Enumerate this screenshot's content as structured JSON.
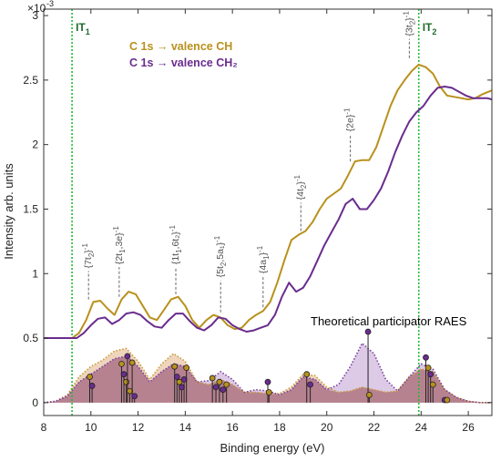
{
  "chart_data": {
    "type": "line",
    "xlabel": "Binding energy (eV)",
    "ylabel": "Intensity arb. units",
    "exponent_label": "×10",
    "exponent_power": "-3",
    "xlim": [
      8,
      27
    ],
    "ylim": [
      -0.1,
      3.05
    ],
    "xticks": [
      "8",
      "10",
      "12",
      "14",
      "16",
      "18",
      "20",
      "22",
      "24",
      "26"
    ],
    "yticks": [
      "0",
      "0.5",
      "1",
      "1.5",
      "2",
      "2.5",
      "3"
    ],
    "grid": false,
    "legend": {
      "placement": "top-left",
      "entries": [
        {
          "label": "C 1s → valence CH",
          "color": "#b8911d"
        },
        {
          "label": "C 1s → valence CH₂",
          "color": "#6a2c8e"
        }
      ]
    },
    "series": [
      {
        "name": "C 1s → valence CH",
        "color": "#b8911d",
        "x": [
          8,
          9.2,
          9.5,
          9.8,
          10.1,
          10.4,
          10.7,
          11.0,
          11.3,
          11.6,
          11.9,
          12.2,
          12.5,
          12.8,
          13.1,
          13.4,
          13.7,
          14.0,
          14.3,
          14.6,
          14.9,
          15.2,
          15.5,
          15.8,
          16.1,
          16.4,
          16.7,
          17.0,
          17.3,
          17.6,
          17.9,
          18.2,
          18.5,
          18.8,
          19.1,
          19.4,
          19.7,
          20.0,
          20.3,
          20.6,
          20.9,
          21.2,
          21.5,
          21.8,
          22.1,
          22.4,
          22.7,
          23.0,
          23.3,
          23.6,
          23.9,
          24.2,
          24.5,
          24.8,
          25.1,
          25.4,
          25.7,
          26.0,
          26.3,
          26.6,
          27
        ],
        "y": [
          0.5,
          0.5,
          0.54,
          0.64,
          0.78,
          0.79,
          0.73,
          0.68,
          0.8,
          0.86,
          0.84,
          0.75,
          0.66,
          0.64,
          0.72,
          0.8,
          0.82,
          0.75,
          0.64,
          0.58,
          0.64,
          0.68,
          0.66,
          0.6,
          0.57,
          0.58,
          0.64,
          0.68,
          0.71,
          0.78,
          0.93,
          1.1,
          1.26,
          1.3,
          1.33,
          1.4,
          1.5,
          1.58,
          1.62,
          1.66,
          1.76,
          1.87,
          1.88,
          1.88,
          1.98,
          2.14,
          2.3,
          2.42,
          2.5,
          2.57,
          2.62,
          2.6,
          2.55,
          2.45,
          2.38,
          2.37,
          2.36,
          2.35,
          2.36,
          2.39,
          2.42
        ]
      },
      {
        "name": "C 1s → valence CH₂",
        "color": "#6a2c8e",
        "x": [
          8,
          9.4,
          9.7,
          10.0,
          10.3,
          10.6,
          10.9,
          11.2,
          11.5,
          11.8,
          12.1,
          12.4,
          12.7,
          13.0,
          13.3,
          13.6,
          13.9,
          14.2,
          14.5,
          14.8,
          15.1,
          15.4,
          15.7,
          16.0,
          16.3,
          16.6,
          16.9,
          17.2,
          17.5,
          17.8,
          18.1,
          18.4,
          18.7,
          19.0,
          19.3,
          19.6,
          19.9,
          20.2,
          20.5,
          20.8,
          21.1,
          21.4,
          21.7,
          22.0,
          22.3,
          22.6,
          22.9,
          23.2,
          23.5,
          23.8,
          24.1,
          24.4,
          24.7,
          25.0,
          25.3,
          25.6,
          25.9,
          26.2,
          26.5,
          26.8,
          27
        ],
        "y": [
          0.5,
          0.5,
          0.54,
          0.6,
          0.65,
          0.66,
          0.61,
          0.64,
          0.69,
          0.7,
          0.68,
          0.63,
          0.59,
          0.58,
          0.64,
          0.69,
          0.69,
          0.63,
          0.58,
          0.56,
          0.6,
          0.66,
          0.65,
          0.6,
          0.57,
          0.55,
          0.56,
          0.58,
          0.6,
          0.68,
          0.82,
          0.93,
          0.86,
          0.89,
          0.98,
          1.1,
          1.22,
          1.32,
          1.42,
          1.54,
          1.58,
          1.5,
          1.5,
          1.57,
          1.66,
          1.79,
          1.94,
          2.07,
          2.18,
          2.25,
          2.3,
          2.38,
          2.44,
          2.45,
          2.44,
          2.41,
          2.38,
          2.36,
          2.36,
          2.36,
          2.35
        ]
      }
    ],
    "theoretical": {
      "label": "Theoretical participator RAES",
      "ch_color": "#d9a26a",
      "ch2_color": "#b38ac7",
      "overlap_color": "#9c5a67",
      "ch_band": {
        "x": [
          8.0,
          8.5,
          9.0,
          9.5,
          10.0,
          10.5,
          11.0,
          11.5,
          12.0,
          12.5,
          13.0,
          13.5,
          14.0,
          14.5,
          15.0,
          15.5,
          16.0,
          16.5,
          17.0,
          17.5,
          18.0,
          18.5,
          19.0,
          19.5,
          20.0,
          20.5,
          21.0,
          21.5,
          22.0,
          22.5,
          23.0,
          23.5,
          24.0,
          24.5,
          25.0,
          25.5,
          26.0,
          26.5,
          27.0
        ],
        "y": [
          0.0,
          0.01,
          0.06,
          0.2,
          0.28,
          0.33,
          0.4,
          0.42,
          0.32,
          0.18,
          0.3,
          0.38,
          0.32,
          0.16,
          0.14,
          0.18,
          0.14,
          0.08,
          0.08,
          0.07,
          0.07,
          0.12,
          0.22,
          0.21,
          0.12,
          0.08,
          0.09,
          0.12,
          0.1,
          0.08,
          0.09,
          0.2,
          0.26,
          0.24,
          0.1,
          0.04,
          0.01,
          0.0,
          0.0
        ]
      },
      "ch2_band": {
        "x": [
          8.0,
          8.5,
          9.0,
          9.5,
          10.0,
          10.5,
          11.0,
          11.5,
          12.0,
          12.5,
          13.0,
          13.5,
          14.0,
          14.5,
          15.0,
          15.5,
          16.0,
          16.5,
          17.0,
          17.5,
          18.0,
          18.5,
          19.0,
          19.5,
          20.0,
          20.5,
          21.0,
          21.5,
          22.0,
          22.5,
          23.0,
          23.5,
          24.0,
          24.5,
          25.0,
          25.5,
          26.0,
          26.5,
          27.0
        ],
        "y": [
          0.0,
          0.01,
          0.05,
          0.16,
          0.22,
          0.28,
          0.34,
          0.36,
          0.28,
          0.16,
          0.24,
          0.3,
          0.28,
          0.16,
          0.17,
          0.24,
          0.18,
          0.08,
          0.1,
          0.09,
          0.06,
          0.1,
          0.2,
          0.18,
          0.1,
          0.14,
          0.28,
          0.46,
          0.38,
          0.18,
          0.09,
          0.2,
          0.3,
          0.26,
          0.1,
          0.04,
          0.01,
          0.0,
          0.0
        ]
      },
      "sticks": [
        {
          "x": 9.95,
          "y": 0.2,
          "c": "#b8911d"
        },
        {
          "x": 10.05,
          "y": 0.13,
          "c": "#6a2c8e"
        },
        {
          "x": 11.3,
          "y": 0.3,
          "c": "#b8911d"
        },
        {
          "x": 11.4,
          "y": 0.22,
          "c": "#6a2c8e"
        },
        {
          "x": 11.5,
          "y": 0.16,
          "c": "#b8911d"
        },
        {
          "x": 11.55,
          "y": 0.36,
          "c": "#6a2c8e"
        },
        {
          "x": 11.65,
          "y": 0.09,
          "c": "#b8911d"
        },
        {
          "x": 11.75,
          "y": 0.31,
          "c": "#b8911d"
        },
        {
          "x": 11.85,
          "y": 0.05,
          "c": "#6a2c8e"
        },
        {
          "x": 13.55,
          "y": 0.28,
          "c": "#b8911d"
        },
        {
          "x": 13.65,
          "y": 0.2,
          "c": "#6a2c8e"
        },
        {
          "x": 13.75,
          "y": 0.16,
          "c": "#b8911d"
        },
        {
          "x": 13.85,
          "y": 0.12,
          "c": "#6a2c8e"
        },
        {
          "x": 13.95,
          "y": 0.18,
          "c": "#6a2c8e"
        },
        {
          "x": 14.05,
          "y": 0.27,
          "c": "#b8911d"
        },
        {
          "x": 15.15,
          "y": 0.19,
          "c": "#b8911d"
        },
        {
          "x": 15.3,
          "y": 0.12,
          "c": "#6a2c8e"
        },
        {
          "x": 15.45,
          "y": 0.16,
          "c": "#b8911d"
        },
        {
          "x": 15.6,
          "y": 0.1,
          "c": "#6a2c8e"
        },
        {
          "x": 15.75,
          "y": 0.14,
          "c": "#b8911d"
        },
        {
          "x": 17.5,
          "y": 0.16,
          "c": "#6a2c8e"
        },
        {
          "x": 17.55,
          "y": 0.08,
          "c": "#b8911d"
        },
        {
          "x": 19.15,
          "y": 0.22,
          "c": "#b8911d"
        },
        {
          "x": 19.3,
          "y": 0.14,
          "c": "#6a2c8e"
        },
        {
          "x": 21.75,
          "y": 0.55,
          "c": "#6a2c8e"
        },
        {
          "x": 21.8,
          "y": 0.06,
          "c": "#b8911d"
        },
        {
          "x": 24.2,
          "y": 0.35,
          "c": "#6a2c8e"
        },
        {
          "x": 24.3,
          "y": 0.27,
          "c": "#b8911d"
        },
        {
          "x": 24.4,
          "y": 0.22,
          "c": "#6a2c8e"
        },
        {
          "x": 24.5,
          "y": 0.14,
          "c": "#b8911d"
        },
        {
          "x": 25.0,
          "y": 0.02,
          "c": "#6a2c8e"
        },
        {
          "x": 25.1,
          "y": 0.02,
          "c": "#b8911d"
        }
      ]
    },
    "vlines": [
      {
        "x": 9.2,
        "label_main": "IT",
        "label_sub": "1",
        "color": "#22bb33"
      },
      {
        "x": 23.9,
        "label_main": "IT",
        "label_sub": "2",
        "color": "#22bb33"
      }
    ],
    "annotations": [
      {
        "main": "{7t",
        "sub": "2",
        "tail": "}",
        "sup": "-1",
        "x": 9.9,
        "y0": 0.8,
        "y1": 1.02
      },
      {
        "main": "{2t",
        "sub": "1",
        "tail": ",3e}",
        "sup": "-1",
        "x": 11.2,
        "y0": 0.82,
        "y1": 1.05
      },
      {
        "main": "{1t",
        "sub": "1",
        "tail": ",6t₂}",
        "sup": "-1",
        "x": 13.6,
        "y0": 0.84,
        "y1": 1.05
      },
      {
        "main": "{5t",
        "sub": "2",
        "tail": ",5a₁}",
        "sup": "-1",
        "x": 15.5,
        "y0": 0.7,
        "y1": 0.95
      },
      {
        "main": "{4a",
        "sub": "1",
        "tail": "}",
        "sup": "-1",
        "x": 17.3,
        "y0": 0.74,
        "y1": 0.98
      },
      {
        "main": "{4t",
        "sub": "2",
        "tail": "}",
        "sup": "-1",
        "x": 18.9,
        "y0": 1.33,
        "y1": 1.55
      },
      {
        "main": "{2e}",
        "sub": "",
        "tail": "",
        "sup": "-1",
        "x": 21.0,
        "y0": 1.87,
        "y1": 2.08
      },
      {
        "main": "{3t",
        "sub": "2",
        "tail": "}",
        "sup": "-1",
        "x": 23.5,
        "y0": 2.67,
        "y1": 2.82
      }
    ]
  }
}
